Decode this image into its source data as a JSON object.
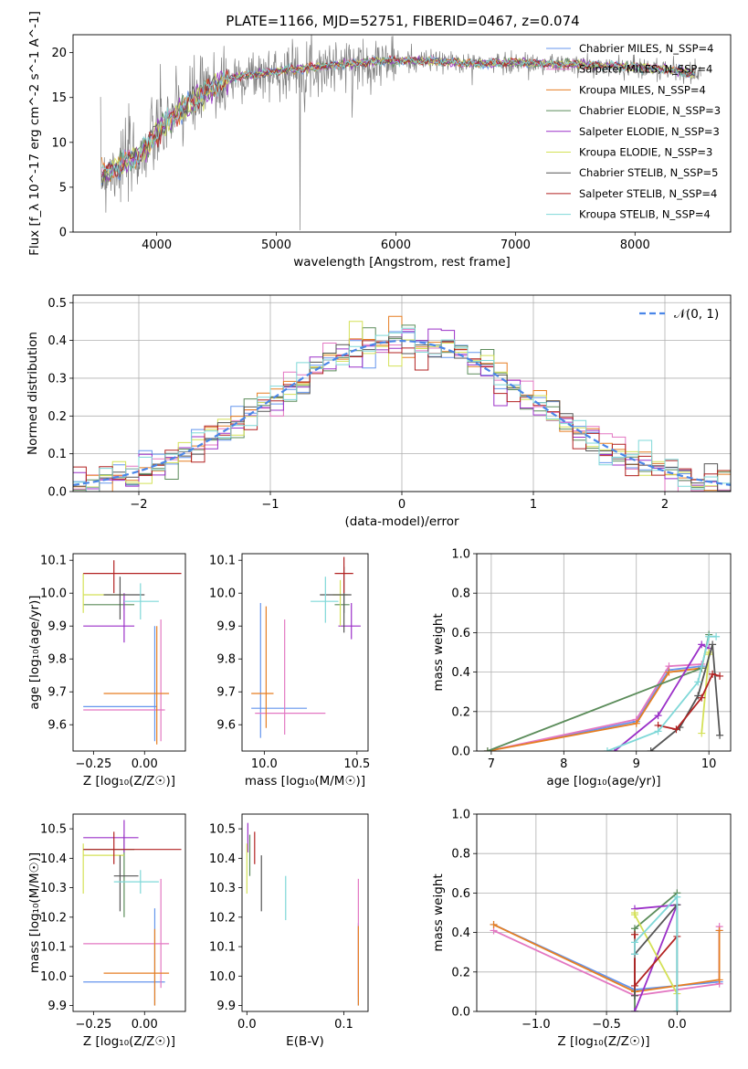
{
  "figure": {
    "title": "PLATE=1166, MJD=52751, FIBERID=0467, z=0.074"
  },
  "colors": {
    "Chabrier MILES": "#6495ed",
    "Salpeter MILES": "#e377c2",
    "Kroupa MILES": "#e67e22",
    "Chabrier ELODIE": "#5b8c5a",
    "Salpeter ELODIE": "#9b30c8",
    "Kroupa ELODIE": "#d4e157",
    "Chabrier STELIB": "#555555",
    "Salpeter STELIB": "#b22222",
    "Kroupa STELIB": "#7fd8d8",
    "spectrum": "#808080",
    "normal": "#4a86e8"
  },
  "chart_data": [
    {
      "id": "spectrum",
      "type": "line",
      "title": "PLATE=1166, MJD=52751, FIBERID=0467, z=0.074",
      "xlabel": "wavelength [Angstrom, rest frame]",
      "ylabel": "Flux [f_λ 10^-17 erg cm^-2 s^-1 A^-1]",
      "xlim": [
        3300,
        8800
      ],
      "ylim": [
        0,
        22
      ],
      "xticks": [
        "4000",
        "5000",
        "6000",
        "7000",
        "8000"
      ],
      "yticks": [
        "0",
        "5",
        "10",
        "15",
        "20"
      ],
      "grid": false,
      "legend": [
        "Chabrier MILES, N_SSP=4",
        "Salpeter MILES, N_SSP=4",
        "Kroupa MILES, N_SSP=4",
        "Chabrier ELODIE, N_SSP=3",
        "Salpeter ELODIE, N_SSP=3",
        "Kroupa ELODIE, N_SSP=3",
        "Chabrier STELIB, N_SSP=5",
        "Salpeter STELIB, N_SSP=4",
        "Kroupa STELIB, N_SSP=4"
      ],
      "continuum": {
        "x": [
          3550,
          3700,
          3850,
          3950,
          4000,
          4100,
          4200,
          4300,
          4400,
          4500,
          4600,
          4700,
          4800,
          5000,
          5200,
          5400,
          5600,
          5800,
          6000,
          6200,
          6400,
          6600,
          6800,
          7000,
          7200,
          7400,
          7600,
          7800,
          8000,
          8200,
          8400,
          8550
        ],
        "y": [
          6.5,
          7.5,
          8.5,
          10.0,
          11.0,
          12.5,
          13.5,
          14.5,
          15.5,
          16.3,
          17.0,
          17.4,
          17.5,
          17.9,
          18.2,
          18.5,
          18.7,
          19.0,
          19.1,
          19.1,
          19.0,
          18.8,
          18.8,
          18.9,
          18.8,
          18.7,
          18.6,
          18.5,
          18.4,
          18.2,
          17.9,
          17.5
        ]
      }
    },
    {
      "id": "residuals",
      "type": "line",
      "xlabel": "(data-model)/error",
      "ylabel": "Normed distribution",
      "xlim": [
        -2.5,
        2.5
      ],
      "ylim": [
        0,
        0.52
      ],
      "xticks": [
        "−2",
        "−1",
        "0",
        "1",
        "2"
      ],
      "yticks": [
        "0.0",
        "0.1",
        "0.2",
        "0.3",
        "0.4",
        "0.5"
      ],
      "grid": true,
      "legend": [
        "𝒩(0, 1)"
      ],
      "series": [
        {
          "name": "𝒩(0, 1)",
          "mean": 0,
          "sigma": 1
        }
      ]
    },
    {
      "id": "z-age",
      "type": "scatter",
      "xlabel": "Z [log₁₀(Z/Z☉)]",
      "ylabel": "age  [log₁₀(age/yr)]",
      "xlim": [
        -0.35,
        0.2
      ],
      "ylim": [
        9.52,
        10.12
      ],
      "xticks": [
        "−0.25",
        "0.00"
      ],
      "yticks": [
        "9.6",
        "9.7",
        "9.8",
        "9.9",
        "10.0",
        "10.1"
      ],
      "points": [
        {
          "m": "Chabrier MILES",
          "x": 0.05,
          "xe": [
            -0.3,
            0.06
          ],
          "y": 9.655,
          "ye": [
            9.55,
            9.9
          ]
        },
        {
          "m": "Salpeter MILES",
          "x": 0.08,
          "xe": [
            -0.3,
            0.1
          ],
          "y": 9.645,
          "ye": [
            9.55,
            9.92
          ]
        },
        {
          "m": "Kroupa MILES",
          "x": 0.06,
          "xe": [
            -0.2,
            0.12
          ],
          "y": 9.695,
          "ye": [
            9.54,
            9.9
          ]
        },
        {
          "m": "Chabrier ELODIE",
          "x": -0.1,
          "xe": [
            -0.3,
            -0.05
          ],
          "y": 9.965,
          "ye": [
            9.95,
            9.98
          ]
        },
        {
          "m": "Salpeter ELODIE",
          "x": -0.1,
          "xe": [
            -0.3,
            -0.05
          ],
          "y": 9.9,
          "ye": [
            9.85,
            10.0
          ]
        },
        {
          "m": "Kroupa ELODIE",
          "x": -0.3,
          "xe": [
            -0.3,
            -0.1
          ],
          "y": 9.995,
          "ye": [
            9.94,
            10.06
          ]
        },
        {
          "m": "Chabrier STELIB",
          "x": -0.12,
          "xe": [
            -0.2,
            0.0
          ],
          "y": 9.995,
          "ye": [
            9.92,
            10.05
          ]
        },
        {
          "m": "Salpeter STELIB",
          "x": -0.15,
          "xe": [
            -0.3,
            0.18
          ],
          "y": 10.06,
          "ye": [
            10.0,
            10.1
          ]
        },
        {
          "m": "Kroupa STELIB",
          "x": -0.02,
          "xe": [
            -0.1,
            0.07
          ],
          "y": 9.975,
          "ye": [
            9.92,
            10.03
          ]
        }
      ]
    },
    {
      "id": "mass-age",
      "type": "scatter",
      "xlabel": "mass [log₁₀(M/M☉)]",
      "ylabel": "",
      "xlim": [
        9.88,
        10.56
      ],
      "ylim": [
        9.52,
        10.12
      ],
      "xticks": [
        "10.0",
        "10.5"
      ],
      "yticks": [
        "9.6",
        "9.7",
        "9.8",
        "9.9",
        "10.0",
        "10.1"
      ],
      "points": [
        {
          "m": "Chabrier MILES",
          "x": 9.98,
          "xe": [
            9.93,
            10.23
          ],
          "y": 9.65,
          "ye": [
            9.56,
            9.97
          ]
        },
        {
          "m": "Salpeter MILES",
          "x": 10.11,
          "xe": [
            9.95,
            10.33
          ],
          "y": 9.635,
          "ye": [
            9.57,
            9.92
          ]
        },
        {
          "m": "Kroupa MILES",
          "x": 10.01,
          "xe": [
            9.93,
            10.05
          ],
          "y": 9.695,
          "ye": [
            9.59,
            9.96
          ]
        },
        {
          "m": "Chabrier ELODIE",
          "x": 10.43,
          "xe": [
            10.38,
            10.46
          ],
          "y": 9.965,
          "ye": [
            9.94,
            10.0
          ]
        },
        {
          "m": "Salpeter ELODIE",
          "x": 10.47,
          "xe": [
            10.4,
            10.52
          ],
          "y": 9.9,
          "ye": [
            9.86,
            9.97
          ]
        },
        {
          "m": "Kroupa ELODIE",
          "x": 10.41,
          "xe": [
            10.37,
            10.45
          ],
          "y": 9.995,
          "ye": [
            9.9,
            10.04
          ]
        },
        {
          "m": "Chabrier STELIB",
          "x": 10.43,
          "xe": [
            10.3,
            10.47
          ],
          "y": 9.995,
          "ye": [
            9.88,
            10.08
          ]
        },
        {
          "m": "Salpeter STELIB",
          "x": 10.43,
          "xe": [
            10.38,
            10.48
          ],
          "y": 10.06,
          "ye": [
            10.0,
            10.11
          ]
        },
        {
          "m": "Kroupa STELIB",
          "x": 10.33,
          "xe": [
            10.25,
            10.4
          ],
          "y": 9.975,
          "ye": [
            9.91,
            10.05
          ]
        }
      ]
    },
    {
      "id": "age-weight",
      "type": "line",
      "xlabel": "age  [log₁₀(age/yr)]",
      "ylabel": "mass weight",
      "xlim": [
        6.8,
        10.3
      ],
      "ylim": [
        0,
        1
      ],
      "xticks": [
        "7",
        "8",
        "9",
        "10"
      ],
      "yticks": [
        "0.0",
        "0.2",
        "0.4",
        "0.6",
        "0.8",
        "1.0"
      ],
      "grid": true,
      "series": [
        {
          "name": "Chabrier MILES",
          "x": [
            6.95,
            9.0,
            9.45,
            9.9
          ],
          "y": [
            0.0,
            0.15,
            0.41,
            0.43
          ]
        },
        {
          "name": "Salpeter MILES",
          "x": [
            6.95,
            9.0,
            9.45,
            9.9
          ],
          "y": [
            0.0,
            0.16,
            0.43,
            0.44
          ]
        },
        {
          "name": "Kroupa MILES",
          "x": [
            6.95,
            9.0,
            9.45,
            9.9
          ],
          "y": [
            0.0,
            0.14,
            0.4,
            0.42
          ]
        },
        {
          "name": "Chabrier ELODIE",
          "x": [
            6.95,
            9.9,
            10.0
          ],
          "y": [
            0.0,
            0.42,
            0.59
          ]
        },
        {
          "name": "Salpeter ELODIE",
          "x": [
            8.7,
            9.3,
            9.9,
            10.0
          ],
          "y": [
            0.0,
            0.18,
            0.54,
            0.52
          ]
        },
        {
          "name": "Kroupa ELODIE",
          "x": [
            9.9,
            10.0,
            10.0
          ],
          "y": [
            0.09,
            0.49,
            0.5
          ]
        },
        {
          "name": "Chabrier STELIB",
          "x": [
            9.2,
            9.6,
            9.85,
            10.05,
            10.15
          ],
          "y": [
            0.0,
            0.12,
            0.28,
            0.54,
            0.08
          ]
        },
        {
          "name": "Salpeter STELIB",
          "x": [
            9.3,
            9.55,
            9.9,
            10.05,
            10.15
          ],
          "y": [
            0.13,
            0.11,
            0.27,
            0.39,
            0.38
          ]
        },
        {
          "name": "Kroupa STELIB",
          "x": [
            8.6,
            9.3,
            9.85,
            10.0,
            10.1
          ],
          "y": [
            0.0,
            0.1,
            0.35,
            0.58,
            0.58
          ]
        }
      ]
    },
    {
      "id": "z-mass",
      "type": "scatter",
      "xlabel": "Z [log₁₀(Z/Z☉)]",
      "ylabel": "mass [log₁₀(M/M☉)]",
      "xlim": [
        -0.35,
        0.2
      ],
      "ylim": [
        9.88,
        10.55
      ],
      "xticks": [
        "−0.25",
        "0.00"
      ],
      "yticks": [
        "9.9",
        "10.0",
        "10.1",
        "10.2",
        "10.3",
        "10.4",
        "10.5"
      ],
      "points": [
        {
          "m": "Chabrier MILES",
          "x": 0.05,
          "xe": [
            -0.3,
            0.1
          ],
          "y": 9.98,
          "ye": [
            9.9,
            10.23
          ]
        },
        {
          "m": "Salpeter MILES",
          "x": 0.08,
          "xe": [
            -0.3,
            0.12
          ],
          "y": 10.11,
          "ye": [
            9.96,
            10.33
          ]
        },
        {
          "m": "Kroupa MILES",
          "x": 0.05,
          "xe": [
            -0.2,
            0.12
          ],
          "y": 10.01,
          "ye": [
            9.9,
            10.16
          ]
        },
        {
          "m": "Chabrier ELODIE",
          "x": -0.1,
          "xe": [
            -0.3,
            -0.05
          ],
          "y": 10.43,
          "ye": [
            10.2,
            10.48
          ]
        },
        {
          "m": "Salpeter ELODIE",
          "x": -0.1,
          "xe": [
            -0.3,
            -0.03
          ],
          "y": 10.47,
          "ye": [
            10.42,
            10.53
          ]
        },
        {
          "m": "Kroupa ELODIE",
          "x": -0.3,
          "xe": [
            -0.3,
            -0.1
          ],
          "y": 10.41,
          "ye": [
            10.28,
            10.45
          ]
        },
        {
          "m": "Chabrier STELIB",
          "x": -0.12,
          "xe": [
            -0.15,
            -0.03
          ],
          "y": 10.34,
          "ye": [
            10.22,
            10.41
          ]
        },
        {
          "m": "Salpeter STELIB",
          "x": -0.15,
          "xe": [
            -0.3,
            0.18
          ],
          "y": 10.43,
          "ye": [
            10.38,
            10.49
          ]
        },
        {
          "m": "Kroupa STELIB",
          "x": -0.02,
          "xe": [
            -0.15,
            0.07
          ],
          "y": 10.32,
          "ye": [
            10.28,
            10.36
          ]
        }
      ]
    },
    {
      "id": "ebv-mass",
      "type": "scatter",
      "xlabel": "E(B-V)",
      "ylabel": "",
      "xlim": [
        -0.005,
        0.125
      ],
      "ylim": [
        9.88,
        10.55
      ],
      "xticks": [
        "0.0",
        "0.1"
      ],
      "yticks": [
        "9.9",
        "10.0",
        "10.1",
        "10.2",
        "10.3",
        "10.4",
        "10.5"
      ],
      "points": [
        {
          "m": "Chabrier MILES",
          "x": 0.115,
          "xe": [
            0.115,
            0.115
          ],
          "y": 9.98,
          "ye": [
            9.9,
            10.18
          ]
        },
        {
          "m": "Salpeter MILES",
          "x": 0.115,
          "xe": [
            0.115,
            0.115
          ],
          "y": 10.11,
          "ye": [
            9.93,
            10.33
          ]
        },
        {
          "m": "Kroupa MILES",
          "x": 0.115,
          "xe": [
            0.115,
            0.115
          ],
          "y": 10.01,
          "ye": [
            9.9,
            10.17
          ]
        },
        {
          "m": "Chabrier ELODIE",
          "x": 0.003,
          "xe": [
            0.003,
            0.003
          ],
          "y": 10.43,
          "ye": [
            10.34,
            10.48
          ]
        },
        {
          "m": "Salpeter ELODIE",
          "x": 0.001,
          "xe": [
            0.001,
            0.001
          ],
          "y": 10.47,
          "ye": [
            10.42,
            10.52
          ]
        },
        {
          "m": "Kroupa ELODIE",
          "x": 0.0,
          "xe": [
            0.0,
            0.0
          ],
          "y": 10.41,
          "ye": [
            10.28,
            10.45
          ]
        },
        {
          "m": "Chabrier STELIB",
          "x": 0.015,
          "xe": [
            0.015,
            0.015
          ],
          "y": 10.34,
          "ye": [
            10.22,
            10.41
          ]
        },
        {
          "m": "Salpeter STELIB",
          "x": 0.008,
          "xe": [
            0.008,
            0.008
          ],
          "y": 10.43,
          "ye": [
            10.38,
            10.49
          ]
        },
        {
          "m": "Kroupa STELIB",
          "x": 0.04,
          "xe": [
            0.04,
            0.04
          ],
          "y": 10.32,
          "ye": [
            10.19,
            10.34
          ]
        }
      ]
    },
    {
      "id": "z-weight",
      "type": "line",
      "xlabel": "Z [log₁₀(Z/Z☉)]",
      "ylabel": "mass weight",
      "xlim": [
        -1.42,
        0.38
      ],
      "ylim": [
        0,
        1
      ],
      "xticks": [
        "−1.0",
        "−0.5",
        "0.0"
      ],
      "yticks": [
        "0.0",
        "0.2",
        "0.4",
        "0.6",
        "0.8",
        "1.0"
      ],
      "grid": true,
      "series": [
        {
          "name": "Chabrier MILES",
          "x": [
            -1.3,
            -0.3,
            0.3,
            0.3
          ],
          "y": [
            0.44,
            0.11,
            0.15,
            0.41
          ]
        },
        {
          "name": "Salpeter MILES",
          "x": [
            -1.3,
            -0.3,
            0.3,
            0.3
          ],
          "y": [
            0.41,
            0.08,
            0.14,
            0.43
          ]
        },
        {
          "name": "Kroupa MILES",
          "x": [
            -1.3,
            -0.3,
            0.3,
            0.3
          ],
          "y": [
            0.44,
            0.1,
            0.16,
            0.41
          ]
        },
        {
          "name": "Chabrier ELODIE",
          "x": [
            -0.3,
            -0.3,
            0.0
          ],
          "y": [
            0.0,
            0.42,
            0.6
          ]
        },
        {
          "name": "Salpeter ELODIE",
          "x": [
            -0.3,
            0.0,
            -0.3
          ],
          "y": [
            0.0,
            0.54,
            0.52
          ]
        },
        {
          "name": "Kroupa ELODIE",
          "x": [
            -0.3,
            -0.3,
            0.0
          ],
          "y": [
            0.5,
            0.49,
            0.09
          ]
        },
        {
          "name": "Chabrier STELIB",
          "x": [
            -0.3,
            -0.3,
            0.0,
            0.0
          ],
          "y": [
            0.08,
            0.29,
            0.54,
            0.0
          ]
        },
        {
          "name": "Salpeter STELIB",
          "x": [
            -0.3,
            -0.3,
            0.0
          ],
          "y": [
            0.39,
            0.13,
            0.38
          ]
        },
        {
          "name": "Kroupa STELIB",
          "x": [
            -0.3,
            -0.3,
            0.0,
            0.0
          ],
          "y": [
            0.29,
            0.35,
            0.58,
            0.0
          ]
        }
      ]
    }
  ]
}
